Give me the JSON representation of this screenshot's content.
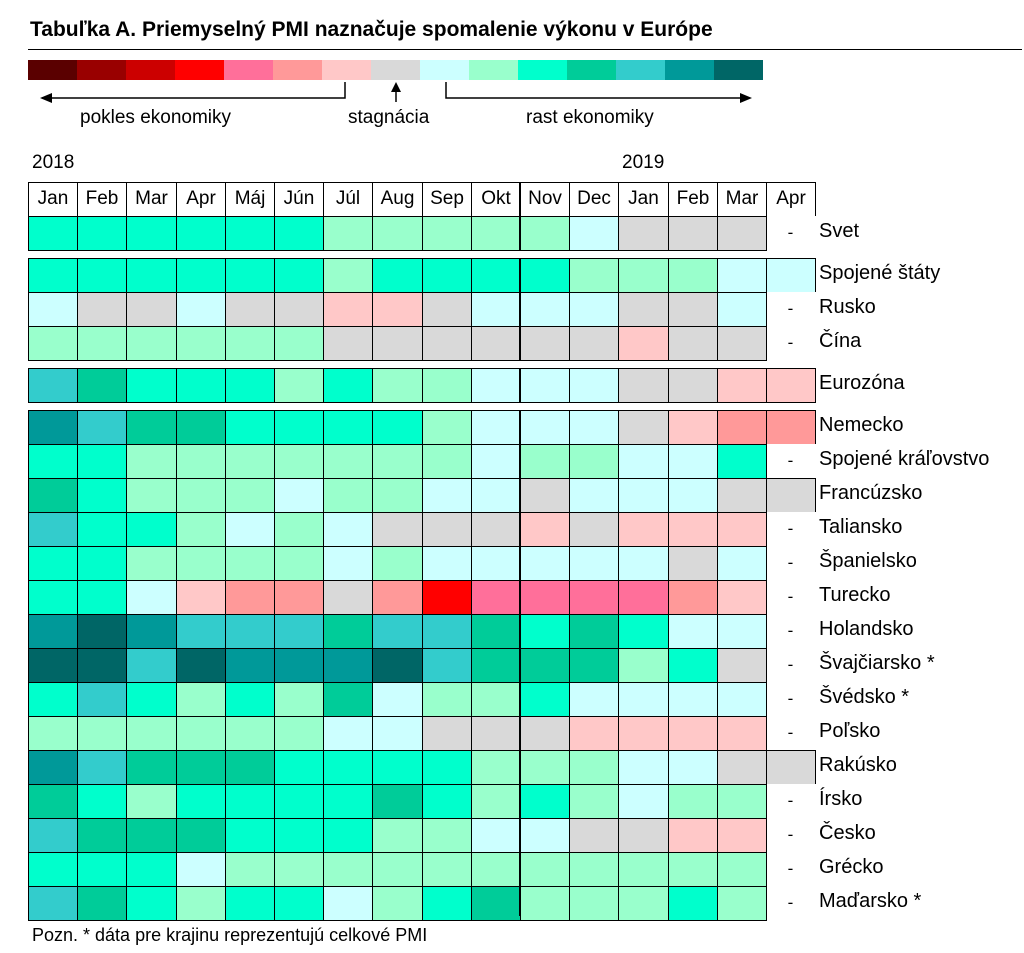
{
  "title": "Tabuľka A. Priemyselný PMI naznačuje spomalenie výkonu v Európe",
  "scale_colors": [
    "#5a0000",
    "#990000",
    "#cc0000",
    "#ff0000",
    "#ff6f9a",
    "#ff9999",
    "#ffc8c8",
    "#d9d9d9",
    "#ccffff",
    "#99ffcc",
    "#00ffcc",
    "#00cc99",
    "#33cccc",
    "#009999",
    "#006666"
  ],
  "legend": {
    "decline": "pokles ekonomiky",
    "stagnation": "stagnácia",
    "growth": "rast ekonomiky"
  },
  "years": {
    "y2018": "2018",
    "y2019": "2019"
  },
  "months": [
    "Jan",
    "Feb",
    "Mar",
    "Apr",
    "Máj",
    "Jún",
    "Júl",
    "Aug",
    "Sep",
    "Okt",
    "Nov",
    "Dec",
    "Jan",
    "Feb",
    "Mar",
    "Apr"
  ],
  "palette": {
    "A": "#006666",
    "B": "#009999",
    "C": "#33cccc",
    "D": "#00cc99",
    "E": "#00ffcc",
    "F": "#99ffcc",
    "G": "#ccffff",
    "H": "#d9d9d9",
    "I": "#ffc8c8",
    "J": "#ff9999",
    "K": "#ff6f9a",
    "L": "#ff0000",
    "W": "#ffffff"
  },
  "missing_mark": "-",
  "chart_data": {
    "type": "table",
    "title": "Tabuľka A. Priemyselný PMI naznačuje spomalenie výkonu v Európe",
    "legend_categories": [
      "pokles ekonomiky",
      "stagnácia",
      "rast ekonomiky"
    ],
    "columns": [
      "Jan",
      "Feb",
      "Mar",
      "Apr",
      "Máj",
      "Jún",
      "Júl",
      "Aug",
      "Sep",
      "Okt",
      "Nov",
      "Dec",
      "Jan",
      "Feb",
      "Mar",
      "Apr"
    ],
    "groups": [
      {
        "rows": [
          {
            "label": "Svet",
            "cells": "EEEEEEFFFFFGHHH-"
          }
        ]
      },
      {
        "rows": [
          {
            "label": "Spojené štáty",
            "cells": "EEEEEEFEEEEFFFGG"
          },
          {
            "label": "Rusko",
            "cells": "GHHGHHIIHGGGHHG-"
          },
          {
            "label": "Čína",
            "cells": "FFFFFFHHHHHHIHH-"
          }
        ]
      },
      {
        "rows": [
          {
            "label": "Eurozóna",
            "cells": "CDEEEFEFFGGGHHII"
          }
        ]
      },
      {
        "rows": [
          {
            "label": "Nemecko",
            "cells": "BCDDEEEEFGGGHIJJ"
          },
          {
            "label": "Spojené kráľovstvo",
            "cells": "EEFFFFFFFGFFGGE-"
          },
          {
            "label": "Francúzsko",
            "cells": "DEFFFGFFGGHGGGHH"
          },
          {
            "label": "Taliansko",
            "cells": "CEEFGFGHHHIHIII-"
          },
          {
            "label": "Španielsko",
            "cells": "EEFFFFGFGGGGGHG-"
          },
          {
            "label": "Turecko",
            "cells": "EEGIJJHJLKKKKJI-"
          },
          {
            "label": "Holandsko",
            "cells": "BABCCCDCCDEDEGG-"
          },
          {
            "label": "Švajčiarsko *",
            "cells": "AACABBBACDDDFEH-"
          },
          {
            "label": "Švédsko *",
            "cells": "ECEFEFDGFFEGGGG-"
          },
          {
            "label": "Poľsko",
            "cells": "FFFFFFGGHHHIIII-"
          },
          {
            "label": "Rakúsko",
            "cells": "BCDDDEEEEFFFGGHH"
          },
          {
            "label": "Írsko",
            "cells": "DEFEEEEDEFEFGFF-"
          },
          {
            "label": "Česko",
            "cells": "CDDDEEEFFGGHHII-"
          },
          {
            "label": "Grécko",
            "cells": "EEEGFFFFFFFFFFF-"
          },
          {
            "label": "Maďarsko *",
            "cells": "CDEFEEGFEDFFFEF-"
          }
        ]
      }
    ]
  },
  "note": "Pozn. * dáta pre krajinu reprezentujú celkové PMI"
}
